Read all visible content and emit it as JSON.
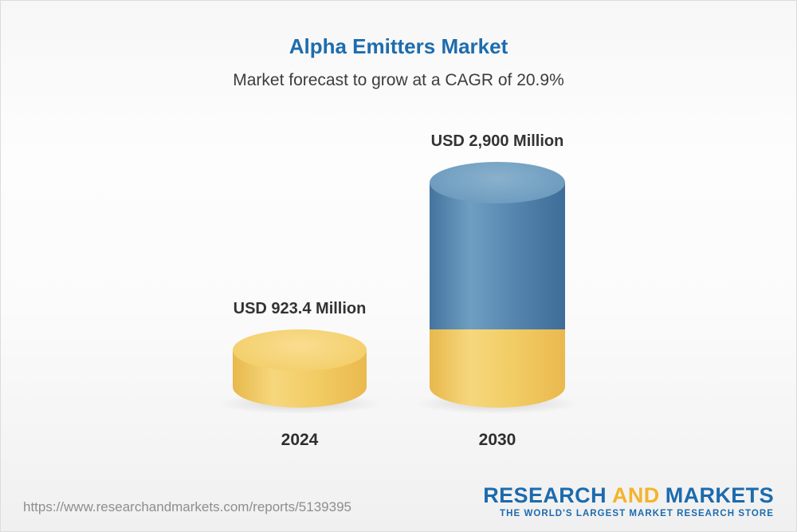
{
  "page": {
    "title": "Alpha Emitters Market",
    "subtitle": "Market forecast to grow at a CAGR of 20.9%",
    "footer_url": "https://www.researchandmarkets.com/reports/5139395",
    "logo": {
      "part1": "RESEARCH",
      "part2": "AND",
      "part3": "MARKETS",
      "tagline": "THE WORLD'S LARGEST MARKET RESEARCH STORE"
    },
    "colors": {
      "title_blue": "#1d6cae",
      "bar_yellow": "#f2cc64",
      "bar_blue": "#5484ad",
      "logo_blue": "#1c6bad",
      "logo_gold": "#f3b42c"
    }
  },
  "chart_data": {
    "type": "bar",
    "variant": "3d-cylinder",
    "title": "Alpha Emitters Market",
    "subtitle": "Market forecast to grow at a CAGR of 20.9%",
    "cagr_percent": 20.9,
    "unit": "USD Million",
    "categories": [
      "2024",
      "2030"
    ],
    "values": [
      923.4,
      2900
    ],
    "value_labels": [
      "USD 923.4 Million",
      "USD 2,900 Million"
    ],
    "series_note": "2030 cylinder shows the 2024 base amount in yellow with forecast growth in blue stacked above",
    "legend": "none",
    "axes": "none"
  }
}
